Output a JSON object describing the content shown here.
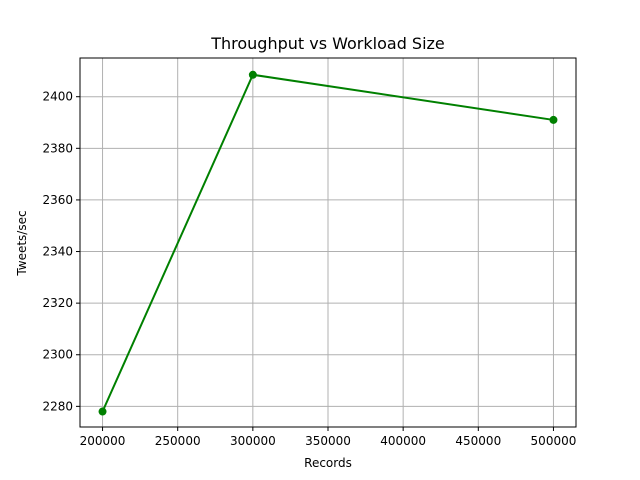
{
  "chart_data": {
    "type": "line",
    "title": "Throughput vs Workload Size",
    "xlabel": "Records",
    "ylabel": "Tweets/sec",
    "x": [
      200000,
      300000,
      500000
    ],
    "series": [
      {
        "values": [
          2278,
          2408.5,
          2391
        ]
      }
    ],
    "xlim": [
      185000,
      515000
    ],
    "ylim": [
      2272,
      2415
    ],
    "xticks": [
      200000,
      250000,
      300000,
      350000,
      400000,
      450000,
      500000
    ],
    "yticks": [
      2280,
      2300,
      2320,
      2340,
      2360,
      2380,
      2400
    ],
    "grid": true,
    "line_color": "#008000",
    "marker": "circle"
  }
}
